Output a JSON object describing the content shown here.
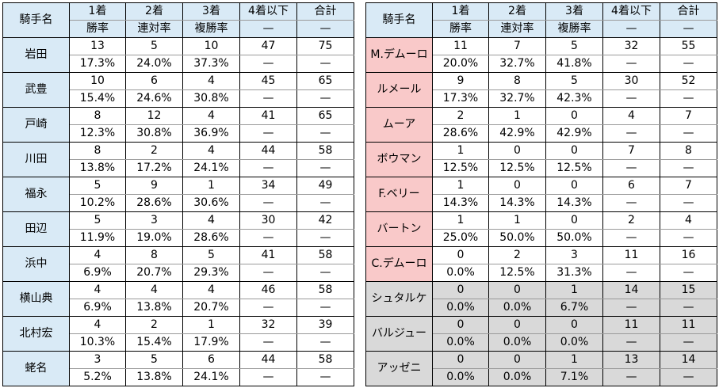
{
  "headers": {
    "name": "騎手名",
    "c1": "1着",
    "c2": "2着",
    "c3": "3着",
    "c4": "4着以下",
    "c5": "合計",
    "s1": "勝率",
    "s2": "連対率",
    "s3": "複勝率",
    "s4": "—",
    "s5": "—"
  },
  "left": [
    {
      "name": "岩田",
      "counts": [
        "13",
        "5",
        "10",
        "47",
        "75"
      ],
      "rates": [
        "17.3%",
        "24.0%",
        "37.3%",
        "—",
        "—"
      ]
    },
    {
      "name": "武豊",
      "counts": [
        "10",
        "6",
        "4",
        "45",
        "65"
      ],
      "rates": [
        "15.4%",
        "24.6%",
        "30.8%",
        "—",
        "—"
      ]
    },
    {
      "name": "戸崎",
      "counts": [
        "8",
        "12",
        "4",
        "41",
        "65"
      ],
      "rates": [
        "12.3%",
        "30.8%",
        "36.9%",
        "—",
        "—"
      ]
    },
    {
      "name": "川田",
      "counts": [
        "8",
        "2",
        "4",
        "44",
        "58"
      ],
      "rates": [
        "13.8%",
        "17.2%",
        "24.1%",
        "—",
        "—"
      ]
    },
    {
      "name": "福永",
      "counts": [
        "5",
        "9",
        "1",
        "34",
        "49"
      ],
      "rates": [
        "10.2%",
        "28.6%",
        "30.6%",
        "—",
        "—"
      ]
    },
    {
      "name": "田辺",
      "counts": [
        "5",
        "3",
        "4",
        "30",
        "42"
      ],
      "rates": [
        "11.9%",
        "19.0%",
        "28.6%",
        "—",
        "—"
      ]
    },
    {
      "name": "浜中",
      "counts": [
        "4",
        "8",
        "5",
        "41",
        "58"
      ],
      "rates": [
        "6.9%",
        "20.7%",
        "29.3%",
        "—",
        "—"
      ]
    },
    {
      "name": "横山典",
      "counts": [
        "4",
        "4",
        "4",
        "46",
        "58"
      ],
      "rates": [
        "6.9%",
        "13.8%",
        "20.7%",
        "—",
        "—"
      ]
    },
    {
      "name": "北村宏",
      "counts": [
        "4",
        "2",
        "1",
        "32",
        "39"
      ],
      "rates": [
        "10.3%",
        "15.4%",
        "17.9%",
        "—",
        "—"
      ]
    },
    {
      "name": "蛯名",
      "counts": [
        "3",
        "5",
        "6",
        "44",
        "58"
      ],
      "rates": [
        "5.2%",
        "13.8%",
        "24.1%",
        "—",
        "—"
      ]
    }
  ],
  "right": [
    {
      "name": "M.デムーロ",
      "counts": [
        "11",
        "7",
        "5",
        "32",
        "55"
      ],
      "rates": [
        "20.0%",
        "32.7%",
        "41.8%",
        "—",
        "—"
      ],
      "shade": "pink"
    },
    {
      "name": "ルメール",
      "counts": [
        "9",
        "8",
        "5",
        "30",
        "52"
      ],
      "rates": [
        "17.3%",
        "32.7%",
        "42.3%",
        "—",
        "—"
      ],
      "shade": "pink"
    },
    {
      "name": "ムーア",
      "counts": [
        "2",
        "1",
        "0",
        "4",
        "7"
      ],
      "rates": [
        "28.6%",
        "42.9%",
        "42.9%",
        "—",
        "—"
      ],
      "shade": "pink"
    },
    {
      "name": "ボウマン",
      "counts": [
        "1",
        "0",
        "0",
        "7",
        "8"
      ],
      "rates": [
        "12.5%",
        "12.5%",
        "12.5%",
        "—",
        "—"
      ],
      "shade": "pink"
    },
    {
      "name": "F.ベリー",
      "counts": [
        "1",
        "0",
        "0",
        "6",
        "7"
      ],
      "rates": [
        "14.3%",
        "14.3%",
        "14.3%",
        "—",
        "—"
      ],
      "shade": "pink"
    },
    {
      "name": "バートン",
      "counts": [
        "1",
        "1",
        "0",
        "2",
        "4"
      ],
      "rates": [
        "25.0%",
        "50.0%",
        "50.0%",
        "—",
        "—"
      ],
      "shade": "pink"
    },
    {
      "name": "C.デムーロ",
      "counts": [
        "0",
        "2",
        "3",
        "11",
        "16"
      ],
      "rates": [
        "0.0%",
        "12.5%",
        "31.3%",
        "—",
        "—"
      ],
      "shade": "pink"
    },
    {
      "name": "シュタルケ",
      "counts": [
        "0",
        "0",
        "1",
        "14",
        "15"
      ],
      "rates": [
        "0.0%",
        "0.0%",
        "6.7%",
        "—",
        "—"
      ],
      "shade": "gray"
    },
    {
      "name": "バルジュー",
      "counts": [
        "0",
        "0",
        "0",
        "11",
        "11"
      ],
      "rates": [
        "0.0%",
        "0.0%",
        "0.0%",
        "—",
        "—"
      ],
      "shade": "gray"
    },
    {
      "name": "アッゼニ",
      "counts": [
        "0",
        "0",
        "1",
        "13",
        "14"
      ],
      "rates": [
        "0.0%",
        "0.0%",
        "7.1%",
        "—",
        "—"
      ],
      "shade": "gray"
    }
  ],
  "colors": {
    "header": "#d9eaf6",
    "left_name": "#d9eaf6",
    "pink_name": "#f9c9c9",
    "gray_row": "#d9d9d9"
  }
}
